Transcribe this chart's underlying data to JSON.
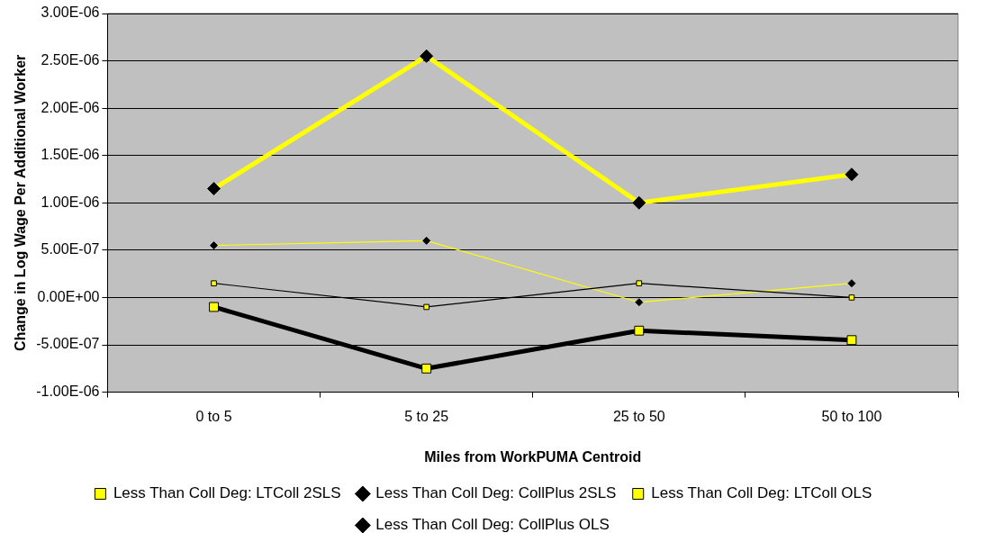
{
  "chart_data": {
    "type": "line",
    "xlabel": "Miles from WorkPUMA Centroid",
    "ylabel": "Change in Log Wage Per Additional Worker",
    "categories": [
      "0 to 5",
      "5 to 25",
      "25 to 50",
      "50 to 100"
    ],
    "series": [
      {
        "name": "Less Than Coll Deg: LTColl 2SLS",
        "color": "#000000",
        "marker": "square",
        "values": [
          -1e-07,
          -7.5e-07,
          -3.5e-07,
          -4.5e-07
        ]
      },
      {
        "name": "Less Than Coll Deg: CollPlus 2SLS",
        "color": "#ffff00",
        "marker": "diamond",
        "values": [
          1.15e-06,
          2.55e-06,
          1e-06,
          1.3e-06
        ]
      },
      {
        "name": "Less Than Coll Deg: LTColl OLS",
        "color": "#000000",
        "marker": "square",
        "values": [
          1.5e-07,
          -1e-07,
          1.5e-07,
          0
        ]
      },
      {
        "name": "Less Than Coll Deg: CollPlus OLS",
        "color": "#ffff00",
        "marker": "diamond",
        "values": [
          5.5e-07,
          6e-07,
          -5e-08,
          1.5e-07
        ]
      }
    ],
    "ylim": [
      -1e-06,
      3e-06
    ],
    "yticks": [
      {
        "value": -1e-06,
        "label": "-1.00E-06"
      },
      {
        "value": -5e-07,
        "label": "-5.00E-07"
      },
      {
        "value": 0,
        "label": "0.00E+00"
      },
      {
        "value": 5e-07,
        "label": "5.00E-07"
      },
      {
        "value": 1e-06,
        "label": "1.00E-06"
      },
      {
        "value": 1.5e-06,
        "label": "1.50E-06"
      },
      {
        "value": 2e-06,
        "label": "2.00E-06"
      },
      {
        "value": 2.5e-06,
        "label": "2.50E-06"
      },
      {
        "value": 3e-06,
        "label": "3.00E-06"
      }
    ],
    "grid": "y",
    "legend": "bottom",
    "line_style": "solid"
  }
}
